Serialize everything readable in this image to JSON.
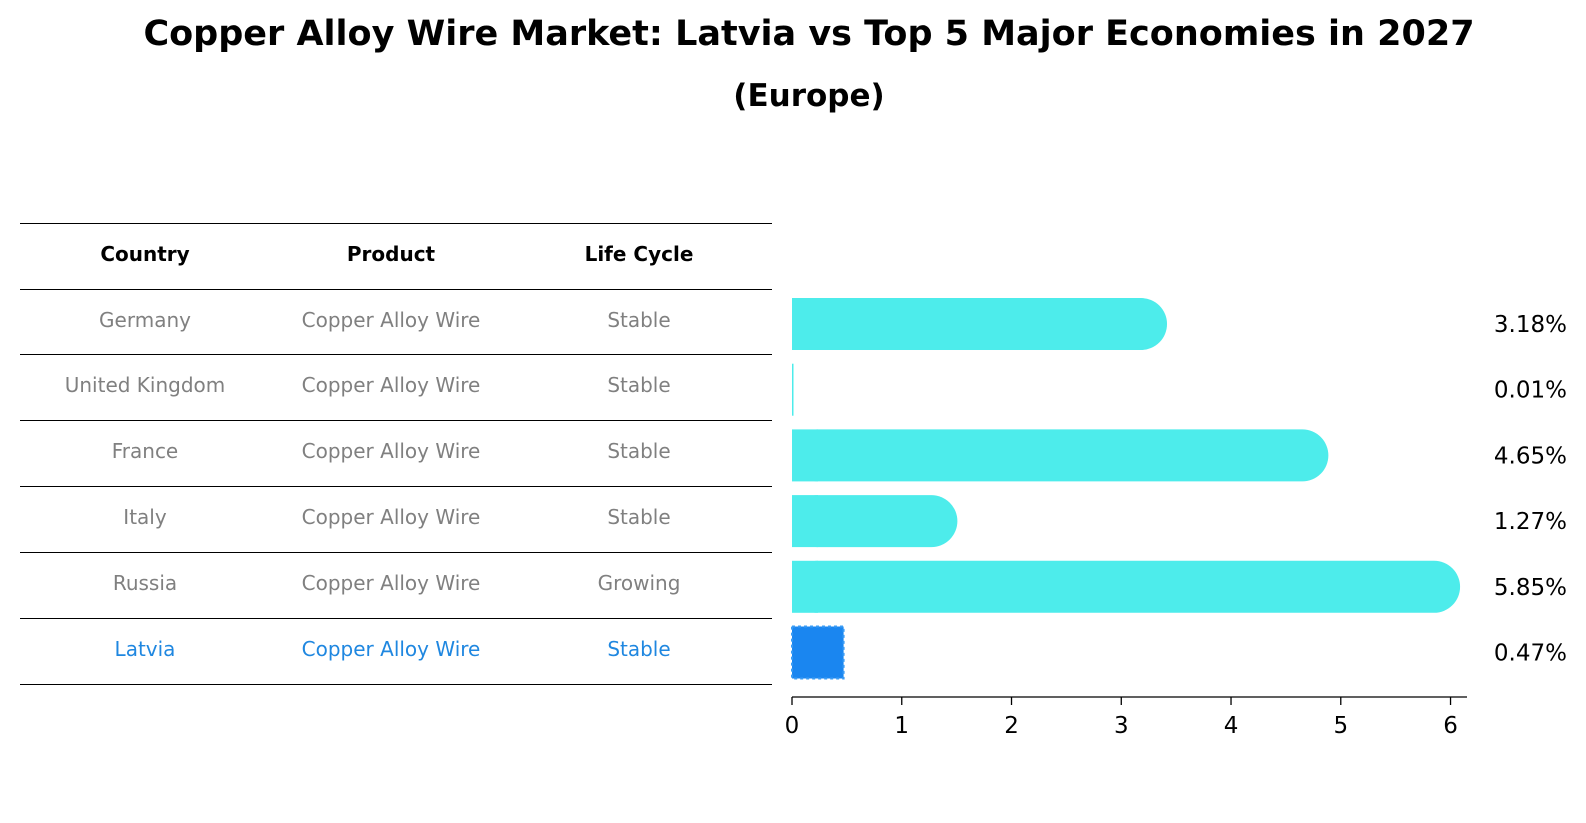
{
  "title": "Copper Alloy Wire Market: Latvia vs Top 5 Major Economies in 2027",
  "subtitle": "(Europe)",
  "table": {
    "headers": [
      "Country",
      "Product",
      "Life Cycle"
    ],
    "rows": [
      {
        "country": "Germany",
        "product": "Copper Alloy Wire",
        "life_cycle": "Stable"
      },
      {
        "country": "United Kingdom",
        "product": "Copper Alloy Wire",
        "life_cycle": "Stable"
      },
      {
        "country": "France",
        "product": "Copper Alloy Wire",
        "life_cycle": "Stable"
      },
      {
        "country": "Italy",
        "product": "Copper Alloy Wire",
        "life_cycle": "Stable"
      },
      {
        "country": "Russia",
        "product": "Copper Alloy Wire",
        "life_cycle": "Growing"
      },
      {
        "country": "Latvia",
        "product": "Copper Alloy Wire",
        "life_cycle": "Stable"
      }
    ],
    "highlight_row": "Latvia"
  },
  "colors": {
    "bar": "#4deceb",
    "highlight_bar": "#1a86f0",
    "highlight_text": "#1f87e0",
    "row_text": "#808080"
  },
  "chart_data": {
    "type": "bar",
    "orientation": "horizontal",
    "categories": [
      "Germany",
      "United Kingdom",
      "France",
      "Italy",
      "Russia",
      "Latvia"
    ],
    "values": [
      3.18,
      0.01,
      4.65,
      1.27,
      5.85,
      0.47
    ],
    "value_labels": [
      "3.18%",
      "0.01%",
      "4.65%",
      "1.27%",
      "5.85%",
      "0.47%"
    ],
    "xlim": [
      0,
      6.15
    ],
    "xticks": [
      0,
      1,
      2,
      3,
      4,
      5,
      6
    ],
    "xtick_labels": [
      "0",
      "1",
      "2",
      "3",
      "4",
      "5",
      "6"
    ],
    "grid": false,
    "xlabel": "",
    "ylabel": ""
  }
}
